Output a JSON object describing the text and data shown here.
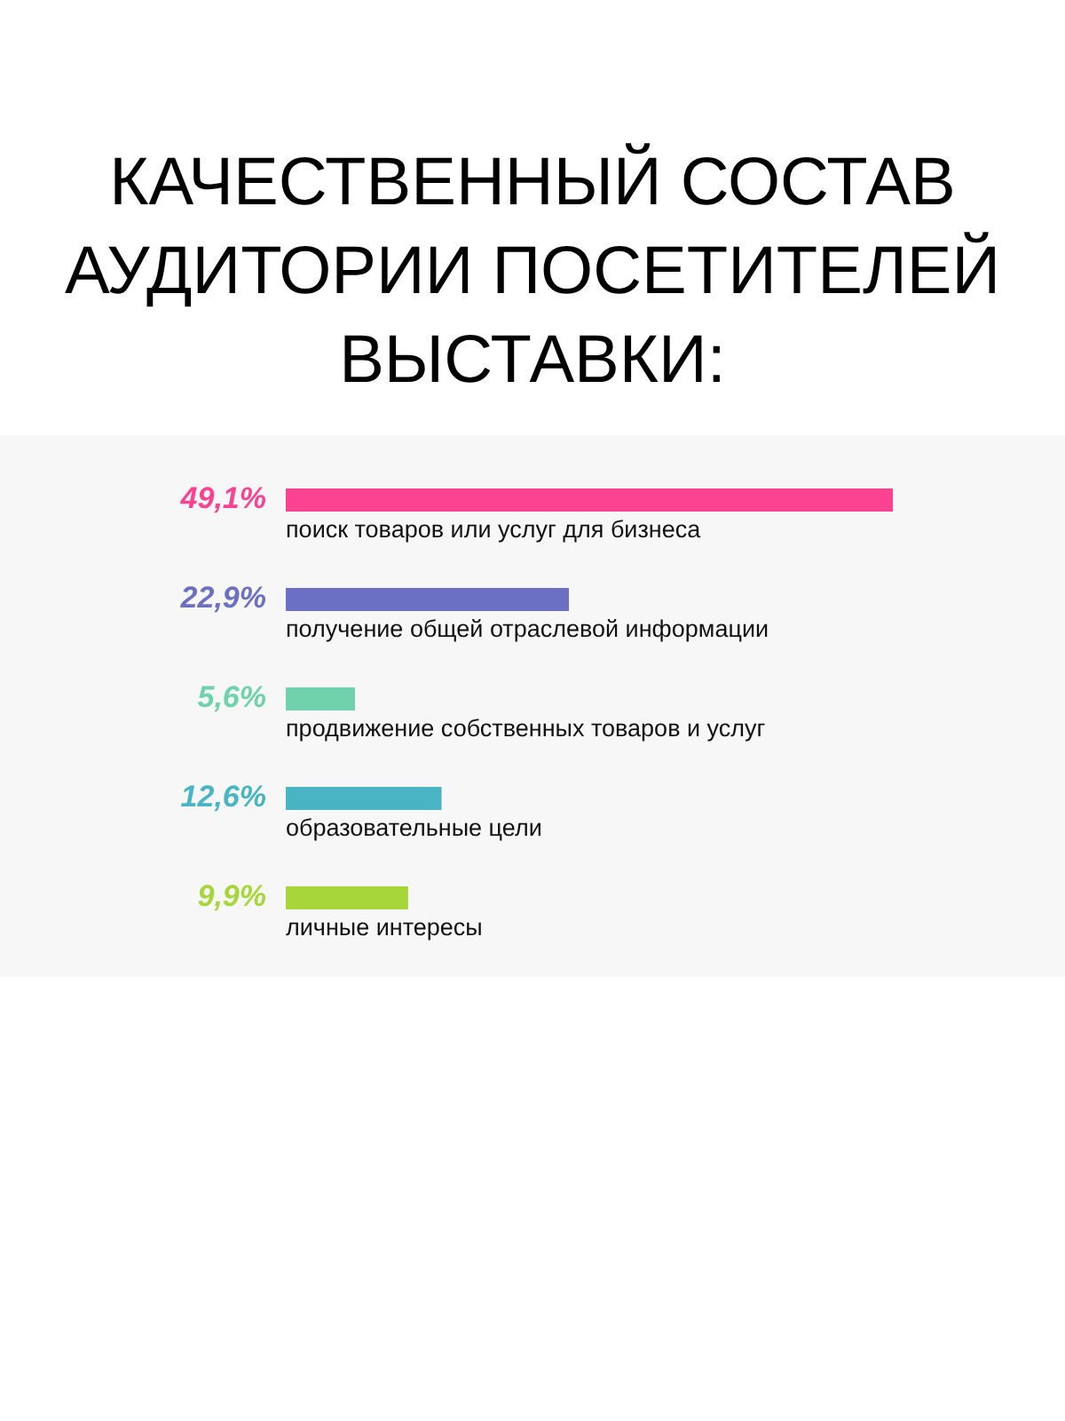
{
  "chart_data": {
    "type": "bar",
    "orientation": "horizontal",
    "title": "КАЧЕСТВЕННЫЙ СОСТАВ АУДИТОРИИ ПОСЕТИТЕЛЕЙ ВЫСТАВКИ:",
    "categories": [
      "поиск товаров или услуг для бизнеса",
      "получение общей отраслевой информации",
      "продвижение собственных товаров и услуг",
      "образовательные цели",
      "личные интересы"
    ],
    "values": [
      49.1,
      22.9,
      5.6,
      12.6,
      9.9
    ],
    "colors": [
      "#fc4391",
      "#6b70c2",
      "#6fd2ad",
      "#48b4c4",
      "#a6d63a"
    ],
    "value_labels": [
      "49,1%",
      "22,9%",
      "5,6%",
      "12,6%",
      "9,9%"
    ]
  }
}
